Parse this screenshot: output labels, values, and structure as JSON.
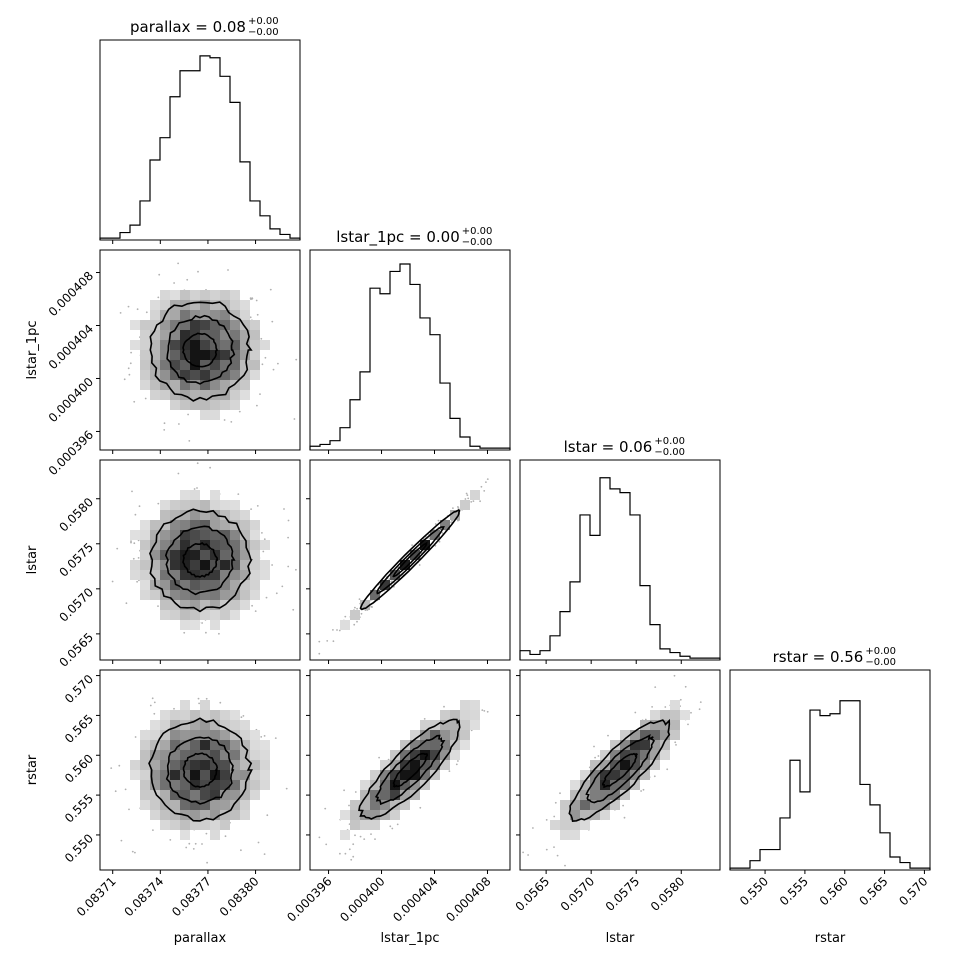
{
  "chart_data": {
    "type": "corner",
    "params": [
      {
        "name": "parallax",
        "xlabel": "parallax",
        "title": "parallax = 0.08",
        "err_plus": "+0.00",
        "err_minus": "−0.00",
        "range": [
          0.083702,
          0.083828
        ],
        "ticks": [
          0.08371,
          0.08374,
          0.08377,
          0.0838
        ],
        "tick_labels": [
          "0.08371",
          "0.08374",
          "0.08377",
          "0.08380"
        ]
      },
      {
        "name": "lstar_1pc",
        "xlabel": "lstar_1pc",
        "ylabel": "lstar_1pc",
        "title": "lstar_1pc = 0.00",
        "err_plus": "+0.00",
        "err_minus": "−0.00",
        "range": [
          0.0003946,
          0.0004097
        ],
        "ticks": [
          0.000396,
          0.0004,
          0.000404,
          0.000408
        ],
        "tick_labels": [
          "0.000396",
          "0.000400",
          "0.000404",
          "0.000408"
        ]
      },
      {
        "name": "lstar",
        "xlabel": "lstar",
        "ylabel": "lstar",
        "title": "lstar = 0.06",
        "err_plus": "+0.00",
        "err_minus": "−0.00",
        "range": [
          0.05621,
          0.05843
        ],
        "ticks": [
          0.0565,
          0.057,
          0.0575,
          0.058
        ],
        "tick_labels": [
          "0.0565",
          "0.0570",
          "0.0575",
          "0.0580"
        ]
      },
      {
        "name": "rstar",
        "xlabel": "rstar",
        "ylabel": "rstar",
        "title": "rstar = 0.56",
        "err_plus": "+0.00",
        "err_minus": "−0.00",
        "range": [
          0.5456,
          0.5707
        ],
        "ticks": [
          0.55,
          0.555,
          0.56,
          0.565,
          0.57
        ],
        "tick_labels": [
          "0.550",
          "0.555",
          "0.560",
          "0.565",
          "0.570"
        ]
      }
    ],
    "histograms": [
      [
        0.01,
        0.01,
        0.04,
        0.08,
        0.21,
        0.43,
        0.55,
        0.77,
        0.91,
        0.91,
        0.99,
        0.98,
        0.88,
        0.74,
        0.42,
        0.21,
        0.13,
        0.06,
        0.03,
        0.01
      ],
      [
        0.02,
        0.03,
        0.05,
        0.12,
        0.27,
        0.42,
        0.87,
        0.84,
        0.96,
        1.0,
        0.89,
        0.71,
        0.62,
        0.36,
        0.17,
        0.07,
        0.02,
        0.01,
        0.01,
        0.01
      ],
      [
        0.05,
        0.03,
        0.05,
        0.13,
        0.26,
        0.42,
        0.78,
        0.67,
        0.98,
        0.92,
        0.9,
        0.78,
        0.4,
        0.19,
        0.06,
        0.04,
        0.02,
        0.01,
        0.01,
        0.01
      ],
      [
        0.01,
        0.01,
        0.05,
        0.11,
        0.11,
        0.28,
        0.59,
        0.42,
        0.86,
        0.83,
        0.84,
        0.91,
        0.91,
        0.46,
        0.35,
        0.2,
        0.07,
        0.04,
        0.01,
        0.01
      ]
    ],
    "correlations": {
      "1-0": 0.0,
      "2-0": 0.0,
      "3-0": 0.0,
      "2-1": 0.99,
      "3-1": 0.85,
      "3-2": 0.85
    },
    "contour_levels": [
      0.5,
      1.0,
      1.5
    ],
    "legend": "none",
    "grid": false
  }
}
